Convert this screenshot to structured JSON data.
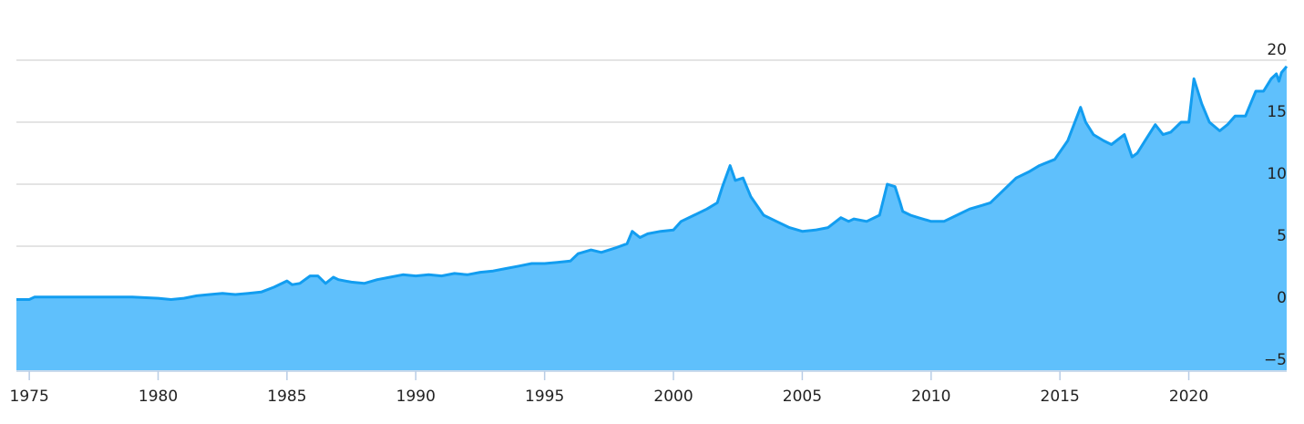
{
  "chart_data": {
    "type": "area",
    "title": "",
    "xlabel": "",
    "ylabel": "",
    "xlim": [
      1974.5,
      2023.8
    ],
    "ylim": [
      -5,
      20
    ],
    "y_ticks": [
      "20",
      "15",
      "10",
      "5",
      "0",
      "−5"
    ],
    "x_ticks": [
      "1975",
      "1980",
      "1985",
      "1990",
      "1995",
      "2000",
      "2005",
      "2010",
      "2015",
      "2020"
    ],
    "grid": true,
    "colors": {
      "fill": "#5fc0fc",
      "line": "#129df0"
    },
    "series": [
      {
        "x": [
          1974.5,
          1975.0,
          1975.2,
          1976.0,
          1977.0,
          1978.0,
          1979.0,
          1980.0,
          1980.5,
          1981.0,
          1981.5,
          1982.0,
          1982.5,
          1983.0,
          1983.5,
          1984.0,
          1984.5,
          1985.0,
          1985.2,
          1985.5,
          1985.9,
          1986.2,
          1986.5,
          1986.8,
          1987.0,
          1987.5,
          1988.0,
          1988.5,
          1989.0,
          1989.5,
          1990.0,
          1990.5,
          1991.0,
          1991.5,
          1992.0,
          1992.5,
          1993.0,
          1993.5,
          1994.0,
          1994.5,
          1995.0,
          1995.5,
          1996.0,
          1996.3,
          1996.8,
          1997.2,
          1997.8,
          1998.2,
          1998.4,
          1998.7,
          1999.0,
          1999.5,
          2000.0,
          2000.3,
          2000.8,
          2001.3,
          2001.7,
          2001.9,
          2002.2,
          2002.4,
          2002.7,
          2003.0,
          2003.5,
          2004.0,
          2004.5,
          2005.0,
          2005.5,
          2006.0,
          2006.5,
          2006.8,
          2007.0,
          2007.5,
          2008.0,
          2008.3,
          2008.6,
          2008.8,
          2008.9,
          2009.2,
          2009.5,
          2010.0,
          2010.5,
          2011.0,
          2011.5,
          2012.0,
          2012.3,
          2012.8,
          2013.3,
          2013.8,
          2014.2,
          2014.8,
          2015.3,
          2015.8,
          2016.0,
          2016.3,
          2016.7,
          2017.0,
          2017.5,
          2017.8,
          2018.0,
          2018.3,
          2018.7,
          2019.0,
          2019.3,
          2019.7,
          2020.0,
          2020.2,
          2020.5,
          2020.8,
          2021.2,
          2021.5,
          2021.8,
          2022.2,
          2022.6,
          2022.9,
          2023.2,
          2023.4,
          2023.5,
          2023.6,
          2023.8
        ],
        "values": [
          0.7,
          0.7,
          0.9,
          0.9,
          0.9,
          0.9,
          0.9,
          0.8,
          0.7,
          0.8,
          1.0,
          1.1,
          1.2,
          1.1,
          1.2,
          1.3,
          1.7,
          2.2,
          1.9,
          2.0,
          2.6,
          2.6,
          2.0,
          2.5,
          2.3,
          2.1,
          2.0,
          2.3,
          2.5,
          2.7,
          2.6,
          2.7,
          2.6,
          2.8,
          2.7,
          2.9,
          3.0,
          3.2,
          3.4,
          3.6,
          3.6,
          3.7,
          3.8,
          4.4,
          4.7,
          4.5,
          4.9,
          5.2,
          6.2,
          5.7,
          6.0,
          6.2,
          6.3,
          7.0,
          7.5,
          8.0,
          8.5,
          9.8,
          11.5,
          10.3,
          10.5,
          9.0,
          7.5,
          7.0,
          6.5,
          6.2,
          6.3,
          6.5,
          7.3,
          7.0,
          7.2,
          7.0,
          7.5,
          10.0,
          9.8,
          8.5,
          7.8,
          7.5,
          7.3,
          7.0,
          7.0,
          7.5,
          8.0,
          8.3,
          8.5,
          9.5,
          10.5,
          11.0,
          11.5,
          12.0,
          13.5,
          16.2,
          15.0,
          14.0,
          13.5,
          13.2,
          14.0,
          12.2,
          12.5,
          13.5,
          14.8,
          14.0,
          14.2,
          15.0,
          15.0,
          18.5,
          16.5,
          15.0,
          14.3,
          14.8,
          15.5,
          15.5,
          17.5,
          17.5,
          18.5,
          18.9,
          18.3,
          19.0,
          19.5
        ]
      }
    ]
  }
}
